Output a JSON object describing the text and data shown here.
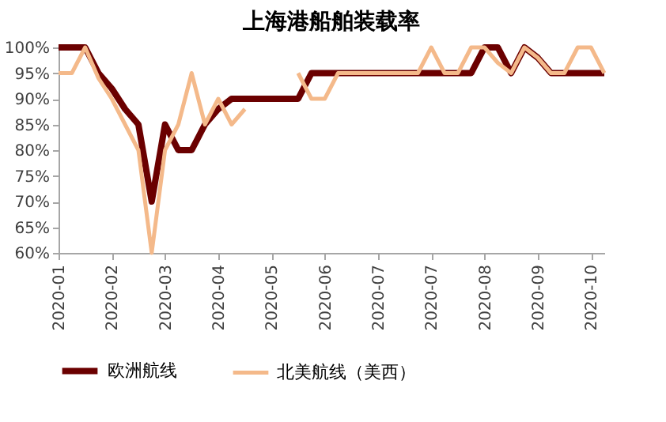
{
  "chart_data": {
    "type": "line",
    "title": "上海港船舶装载率",
    "categories": [
      "2020-01",
      null,
      null,
      null,
      "2020-02",
      null,
      null,
      null,
      "2020-03",
      null,
      null,
      null,
      "2020-04",
      null,
      null,
      null,
      "2020-05",
      null,
      null,
      null,
      "2020-06",
      null,
      null,
      null,
      "2020-07",
      null,
      null,
      null,
      "2020-07",
      null,
      null,
      null,
      "2020-08",
      null,
      null,
      null,
      "2020-09",
      null,
      null,
      null,
      "2020-10",
      null
    ],
    "series": [
      {
        "name": "欧洲航线",
        "color": "#6b0000",
        "values": [
          100,
          100,
          100,
          95,
          92,
          88,
          85,
          70,
          85,
          80,
          80,
          85,
          88,
          90,
          90,
          90,
          90,
          90,
          90,
          95,
          95,
          95,
          95,
          95,
          95,
          95,
          95,
          95,
          95,
          95,
          95,
          95,
          100,
          100,
          95,
          100,
          98,
          95,
          95,
          95,
          95,
          95
        ]
      },
      {
        "name": "北美航线（美西）",
        "color": "#f4b98a",
        "values": [
          95,
          95,
          100,
          94,
          90,
          85,
          80,
          60,
          80,
          85,
          95,
          85,
          90,
          85,
          88,
          null,
          null,
          null,
          95,
          90,
          90,
          95,
          95,
          95,
          95,
          95,
          95,
          95,
          100,
          95,
          95,
          100,
          100,
          97,
          95,
          100,
          98,
          95,
          95,
          100,
          100,
          95
        ]
      }
    ],
    "ylim": [
      60,
      100
    ],
    "yticks": [
      {
        "value": 60,
        "label": "60%"
      },
      {
        "value": 65,
        "label": "65%"
      },
      {
        "value": 70,
        "label": "70%"
      },
      {
        "value": 75,
        "label": "75%"
      },
      {
        "value": 80,
        "label": "80%"
      },
      {
        "value": 85,
        "label": "85%"
      },
      {
        "value": 90,
        "label": "90%"
      },
      {
        "value": 95,
        "label": "95%"
      },
      {
        "value": 100,
        "label": "100%"
      }
    ],
    "grid": false,
    "legend": "bottom",
    "line_style": "solid",
    "marker": "none"
  }
}
